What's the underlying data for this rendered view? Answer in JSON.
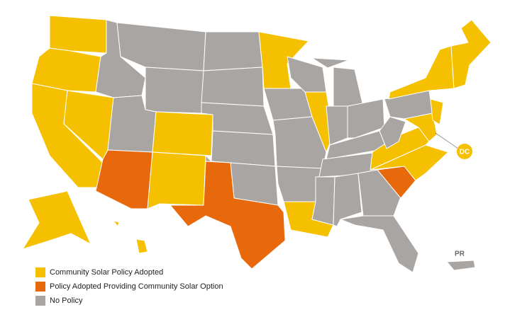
{
  "map": {
    "legend": [
      {
        "label": "Community Solar Policy Adopted",
        "color": "#f5c000"
      },
      {
        "label": "Policy Adopted Providing Community Solar Option",
        "color": "#e8680c"
      },
      {
        "label": "No Policy",
        "color": "#a9a5a3"
      }
    ],
    "labels": {
      "dc": "DC",
      "pr": "PR"
    }
  }
}
